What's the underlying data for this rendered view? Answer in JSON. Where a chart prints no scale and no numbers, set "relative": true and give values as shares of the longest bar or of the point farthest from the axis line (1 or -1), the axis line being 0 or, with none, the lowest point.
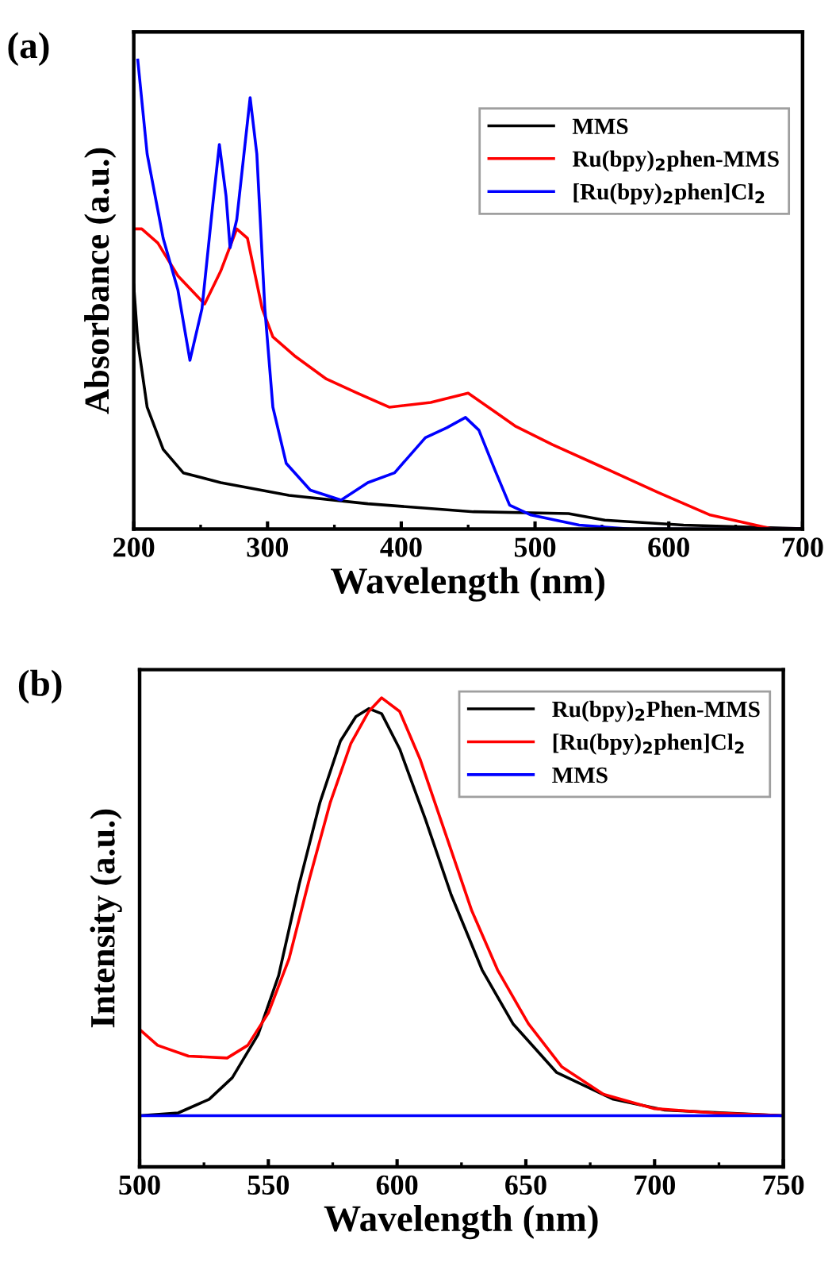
{
  "chart_data": [
    {
      "type": "line",
      "title": "(a)",
      "xlabel": "Wavelength (nm)",
      "ylabel": "Absorbance (a.u.)",
      "relative": true,
      "xlim": [
        200,
        700
      ],
      "xticks": [
        200,
        300,
        400,
        500,
        600,
        700
      ],
      "legend": "top right",
      "grid": false,
      "series": [
        {
          "name": "MMS",
          "color": "#000000",
          "x": [
            200,
            203,
            210,
            222,
            237,
            265,
            316,
            375,
            454,
            525,
            552,
            611,
            700
          ],
          "values": [
            0.52,
            0.4,
            0.26,
            0.17,
            0.12,
            0.099,
            0.072,
            0.054,
            0.037,
            0.033,
            0.019,
            0.0085,
            0.001
          ]
        },
        {
          "name": "Ru(bpy)$_{2}$phen-MMS",
          "color": "#ff0000",
          "x": [
            200,
            206,
            218,
            233,
            253,
            265,
            277,
            285,
            296,
            304,
            320,
            344,
            367,
            391,
            422,
            450,
            470,
            485,
            513,
            552,
            592,
            631,
            678,
            700
          ],
          "values": [
            0.64,
            0.64,
            0.61,
            0.54,
            0.48,
            0.55,
            0.64,
            0.62,
            0.47,
            0.41,
            0.37,
            0.32,
            0.29,
            0.26,
            0.27,
            0.29,
            0.25,
            0.22,
            0.18,
            0.13,
            0.078,
            0.03,
            0,
            0
          ]
        },
        {
          "name": "[Ru(bpy)$_{2}$phen]Cl$_{2}$",
          "color": "#0000ff",
          "x": [
            203,
            210,
            222,
            233,
            242,
            251,
            259,
            264,
            269,
            272,
            277,
            287,
            292,
            298,
            304,
            314,
            332,
            355,
            375,
            395,
            418,
            434,
            448,
            458,
            470,
            481,
            497,
            533,
            572,
            700
          ],
          "values": [
            1.0,
            0.8,
            0.62,
            0.51,
            0.36,
            0.47,
            0.69,
            0.82,
            0.71,
            0.6,
            0.66,
            0.92,
            0.8,
            0.47,
            0.26,
            0.14,
            0.083,
            0.062,
            0.099,
            0.12,
            0.195,
            0.216,
            0.238,
            0.211,
            0.126,
            0.051,
            0.03,
            0.0085,
            0,
            0
          ]
        }
      ]
    },
    {
      "type": "line",
      "title": "(b)",
      "xlabel": "Wavelength (nm)",
      "ylabel": "Intensity (a.u.)",
      "relative": true,
      "xlim": [
        500,
        750
      ],
      "xticks": [
        500,
        550,
        600,
        650,
        700,
        750
      ],
      "legend": "top right",
      "grid": false,
      "series": [
        {
          "name": "Ru(bpy)$_{2}$Phen-MMS",
          "color": "#000000",
          "x": [
            500,
            515,
            527,
            536,
            546,
            554,
            562,
            570,
            578,
            584,
            589,
            594,
            601,
            611,
            621,
            633,
            645,
            662,
            684,
            704,
            750
          ],
          "values": [
            0.109,
            0.115,
            0.144,
            0.19,
            0.282,
            0.408,
            0.603,
            0.776,
            0.908,
            0.96,
            0.977,
            0.966,
            0.891,
            0.741,
            0.58,
            0.42,
            0.305,
            0.201,
            0.144,
            0.121,
            0.109
          ]
        },
        {
          "name": "[Ru(bpy)$_{2}$phen]Cl$_{2}$",
          "color": "#ff0000",
          "x": [
            500,
            507,
            519,
            534,
            542,
            550,
            558,
            566,
            574,
            582,
            589,
            594,
            601,
            609,
            619,
            629,
            639,
            651,
            664,
            680,
            700,
            723,
            750
          ],
          "values": [
            0.293,
            0.259,
            0.236,
            0.232,
            0.259,
            0.328,
            0.443,
            0.615,
            0.776,
            0.902,
            0.971,
            1.0,
            0.971,
            0.868,
            0.707,
            0.546,
            0.42,
            0.305,
            0.213,
            0.155,
            0.124,
            0.115,
            0.109
          ]
        },
        {
          "name": "MMS",
          "color": "#0000ff",
          "x": [
            500,
            750
          ],
          "values": [
            0.109,
            0.109
          ]
        }
      ]
    }
  ]
}
